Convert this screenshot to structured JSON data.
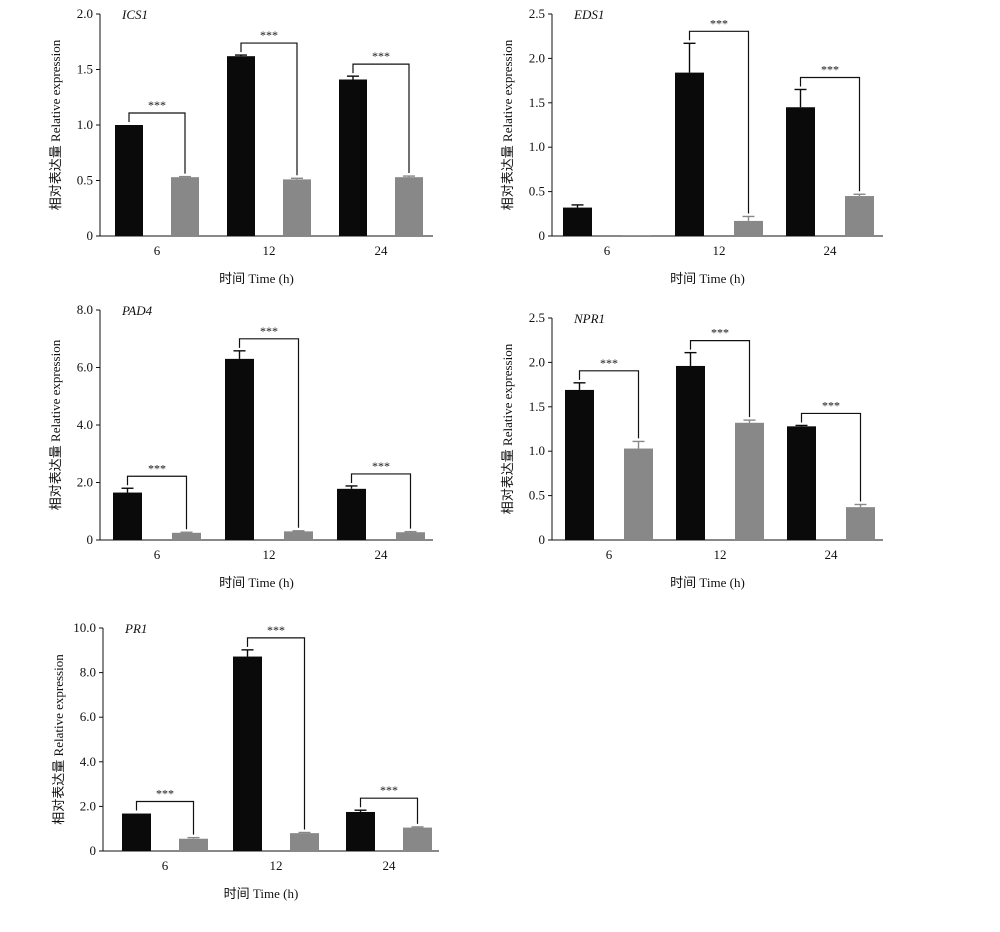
{
  "chart_data": [
    {
      "type": "bar",
      "title": "ICS1",
      "xlabel": "时间 Time (h)",
      "ylabel": "相对表达量 Relative expression",
      "categories": [
        "6",
        "12",
        "24"
      ],
      "ylim": [
        0,
        2.0
      ],
      "yticks": [
        "0",
        "0.5",
        "1.0",
        "1.5",
        "2.0"
      ],
      "series": [
        {
          "color": "#0a0a0a",
          "values": [
            1.0,
            1.62,
            1.41
          ],
          "errors": [
            0.0,
            0.01,
            0.03
          ]
        },
        {
          "color": "#888888",
          "values": [
            0.53,
            0.51,
            0.53
          ],
          "errors": [
            0.005,
            0.01,
            0.01
          ]
        }
      ],
      "significance": [
        "***",
        "***",
        "***"
      ]
    },
    {
      "type": "bar",
      "title": "EDS1",
      "xlabel": "时间 Time (h)",
      "ylabel": "相对表达量 Relative expression",
      "categories": [
        "6",
        "12",
        "24"
      ],
      "ylim": [
        0,
        2.5
      ],
      "yticks": [
        "0",
        "0.5",
        "1.0",
        "1.5",
        "2.0",
        "2.5"
      ],
      "series": [
        {
          "color": "#0a0a0a",
          "values": [
            0.32,
            1.84,
            1.45
          ],
          "errors": [
            0.03,
            0.33,
            0.2
          ]
        },
        {
          "color": "#888888",
          "values": [
            0.01,
            0.17,
            0.45
          ],
          "errors": [
            0.0,
            0.05,
            0.02
          ]
        }
      ],
      "significance": [
        "",
        "***",
        "***"
      ]
    },
    {
      "type": "bar",
      "title": "PAD4",
      "xlabel": "时间 Time (h)",
      "ylabel": "相对表达量 Relative expression",
      "categories": [
        "6",
        "12",
        "24"
      ],
      "ylim": [
        0,
        8.0
      ],
      "yticks": [
        "0",
        "2.0",
        "4.0",
        "6.0",
        "8.0"
      ],
      "series": [
        {
          "color": "#0a0a0a",
          "values": [
            1.65,
            6.3,
            1.78
          ],
          "errors": [
            0.15,
            0.28,
            0.1
          ]
        },
        {
          "color": "#888888",
          "values": [
            0.25,
            0.3,
            0.27
          ],
          "errors": [
            0.02,
            0.02,
            0.02
          ]
        }
      ],
      "significance": [
        "***",
        "***",
        "***"
      ]
    },
    {
      "type": "bar",
      "title": "NPR1",
      "xlabel": "时间 Time (h)",
      "ylabel": "相对表达量 Relative expression",
      "categories": [
        "6",
        "12",
        "24"
      ],
      "ylim": [
        0,
        2.5
      ],
      "yticks": [
        "0",
        "0.5",
        "1.0",
        "1.5",
        "2.0",
        "2.5"
      ],
      "series": [
        {
          "color": "#0a0a0a",
          "values": [
            1.69,
            1.96,
            1.28
          ],
          "errors": [
            0.08,
            0.15,
            0.01
          ]
        },
        {
          "color": "#888888",
          "values": [
            1.03,
            1.32,
            0.37
          ],
          "errors": [
            0.08,
            0.03,
            0.03
          ]
        }
      ],
      "significance": [
        "***",
        "***",
        "***"
      ]
    },
    {
      "type": "bar",
      "title": "PR1",
      "xlabel": "时间 Time (h)",
      "ylabel": "相对表达量 Relative expression",
      "categories": [
        "6",
        "12",
        "24"
      ],
      "ylim": [
        0,
        10.0
      ],
      "yticks": [
        "0",
        "2.0",
        "4.0",
        "6.0",
        "8.0",
        "10.0"
      ],
      "series": [
        {
          "color": "#0a0a0a",
          "values": [
            1.68,
            8.72,
            1.75
          ],
          "errors": [
            0.0,
            0.3,
            0.08
          ]
        },
        {
          "color": "#888888",
          "values": [
            0.55,
            0.8,
            1.05
          ],
          "errors": [
            0.05,
            0.03,
            0.03
          ]
        }
      ],
      "significance": [
        "***",
        "***",
        "***"
      ]
    }
  ]
}
